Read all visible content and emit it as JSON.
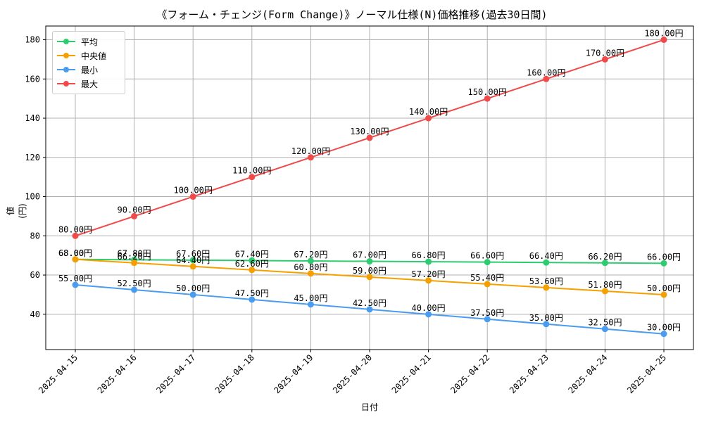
{
  "chart_data": {
    "type": "line",
    "title": "《フォーム・チェンジ(Form Change)》ノーマル仕様(N)価格推移(過去30日間)",
    "xlabel": "日付",
    "ylabel": "値 (円)",
    "categories": [
      "2025-04-15",
      "2025-04-16",
      "2025-04-17",
      "2025-04-18",
      "2025-04-19",
      "2025-04-20",
      "2025-04-21",
      "2025-04-22",
      "2025-04-23",
      "2025-04-24",
      "2025-04-25"
    ],
    "ylim": [
      22,
      187
    ],
    "yticks": [
      40,
      60,
      80,
      100,
      120,
      140,
      160,
      180
    ],
    "grid": true,
    "legend_position": "top-left",
    "value_suffix": "円",
    "series": [
      {
        "name": "平均",
        "color": "#2ecc71",
        "values": [
          68.0,
          67.8,
          67.6,
          67.4,
          67.2,
          67.0,
          66.8,
          66.6,
          66.4,
          66.2,
          66.0
        ]
      },
      {
        "name": "中央値",
        "color": "#f5a000",
        "values": [
          68.0,
          66.2,
          64.4,
          62.6,
          60.8,
          59.0,
          57.2,
          55.4,
          53.6,
          51.8,
          50.0
        ]
      },
      {
        "name": "最小",
        "color": "#4a9cf0",
        "values": [
          55.0,
          52.5,
          50.0,
          47.5,
          45.0,
          42.5,
          40.0,
          37.5,
          35.0,
          32.5,
          30.0
        ]
      },
      {
        "name": "最大",
        "color": "#f04a4a",
        "values": [
          80.0,
          90.0,
          100.0,
          110.0,
          120.0,
          130.0,
          140.0,
          150.0,
          160.0,
          170.0,
          180.0
        ]
      }
    ]
  }
}
